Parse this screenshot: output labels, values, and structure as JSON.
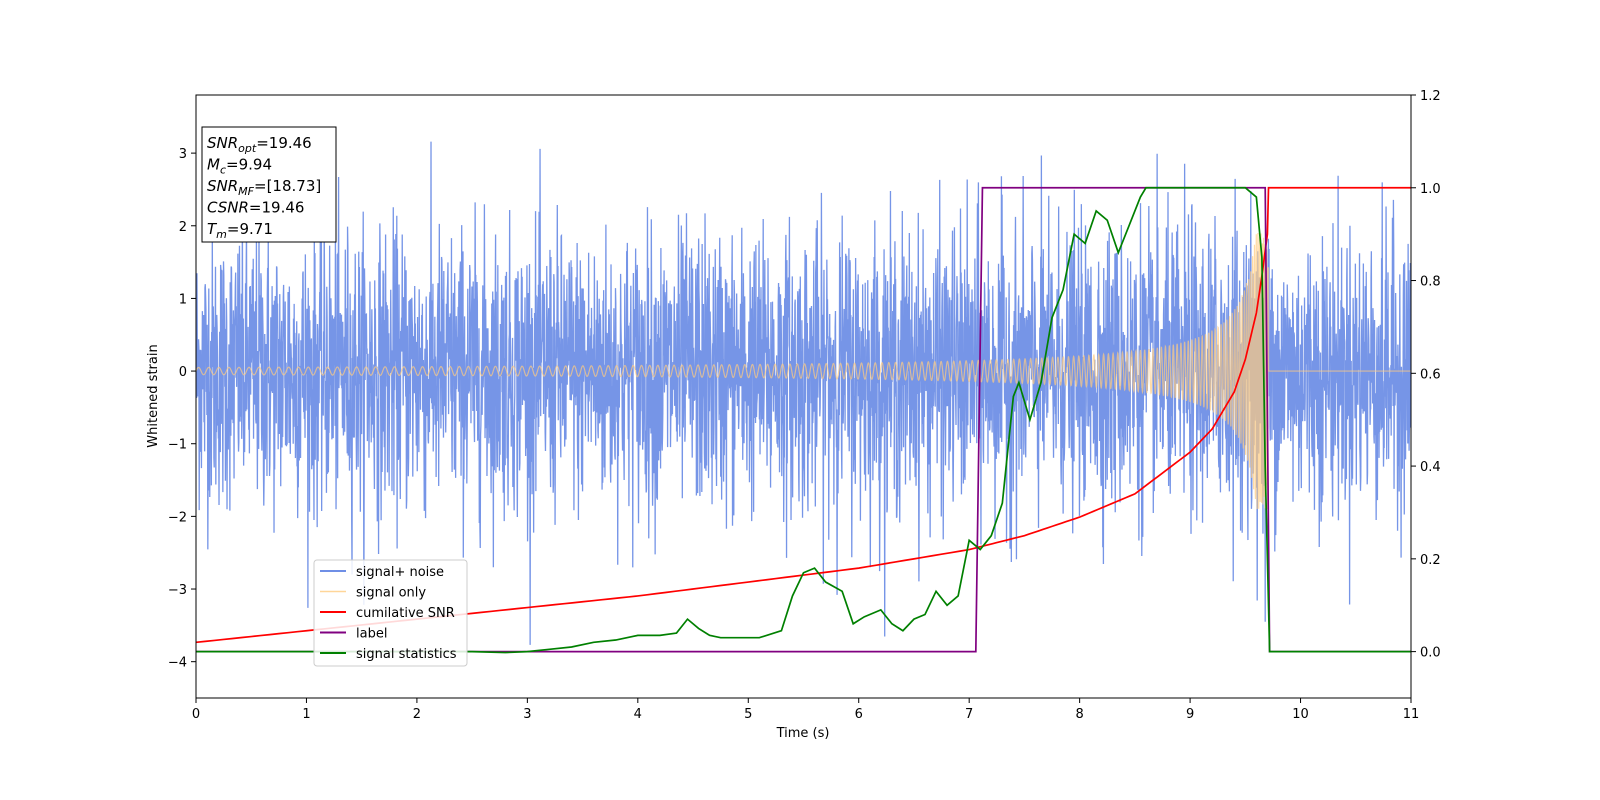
{
  "chart_data": {
    "type": "line",
    "xlabel": "Time (s)",
    "ylabel_left": "Whitened strain",
    "ylabel_right": "",
    "xlim": [
      0,
      11
    ],
    "ylim_left": [
      -4.5,
      3.8
    ],
    "ylim_right": [
      -0.1,
      1.2
    ],
    "x_ticks": [
      0,
      1,
      2,
      3,
      4,
      5,
      6,
      7,
      8,
      9,
      10,
      11
    ],
    "y_ticks_left": [
      -4,
      -3,
      -2,
      -1,
      0,
      1,
      2,
      3
    ],
    "y_ticks_right": [
      0.0,
      0.2,
      0.4,
      0.6,
      0.8,
      1.0,
      1.2
    ],
    "grid": false,
    "legend_position": "lower-left",
    "annotation_box": {
      "position": "upper-left",
      "lines": [
        {
          "base": "SNR",
          "sub": "opt",
          "rest": "=19.46"
        },
        {
          "base": "M",
          "sub": "c",
          "rest": "=9.94"
        },
        {
          "base": "SNR",
          "sub": "MF",
          "rest": "=[18.73]"
        },
        {
          "base": "CSNR",
          "sub": "",
          "rest": "=19.46"
        },
        {
          "base": "T",
          "sub": "m",
          "rest": "=9.71"
        }
      ]
    },
    "series": [
      {
        "name": "signal+ noise",
        "axis": "left",
        "color": "#6f8fe6",
        "description_values": "noise ~ N(0,1) plus chirp signal, peak |y|~3.4 near t=9.7"
      },
      {
        "name": "signal only",
        "axis": "left",
        "color": "#ffcc80",
        "chirp_amplitude_start": 0.05,
        "chirp_amplitude_peak": 1.9,
        "merger_time": 9.71
      },
      {
        "name": "cumilative SNR",
        "axis": "right",
        "color": "#ff0000",
        "x": [
          0,
          1,
          2,
          3,
          4,
          5,
          6,
          7,
          7.5,
          8,
          8.5,
          9,
          9.2,
          9.4,
          9.5,
          9.6,
          9.65,
          9.7,
          9.71,
          11
        ],
        "y": [
          0.02,
          0.045,
          0.07,
          0.095,
          0.12,
          0.15,
          0.18,
          0.22,
          0.25,
          0.29,
          0.34,
          0.43,
          0.48,
          0.56,
          0.63,
          0.73,
          0.81,
          0.9,
          1.0,
          1.0
        ]
      },
      {
        "name": "label",
        "axis": "right",
        "color": "#800080",
        "x": [
          0,
          7.06,
          7.12,
          9.68,
          9.72,
          11
        ],
        "y": [
          0,
          0,
          1,
          1,
          0,
          0
        ]
      },
      {
        "name": "signal statistics",
        "axis": "right",
        "color": "#008000",
        "x": [
          0,
          1,
          2,
          2.5,
          2.8,
          3,
          3.2,
          3.4,
          3.6,
          3.8,
          4,
          4.2,
          4.35,
          4.45,
          4.55,
          4.65,
          4.75,
          4.9,
          5.1,
          5.3,
          5.4,
          5.5,
          5.6,
          5.7,
          5.85,
          5.95,
          6.05,
          6.2,
          6.3,
          6.4,
          6.5,
          6.6,
          6.7,
          6.8,
          6.9,
          7.0,
          7.1,
          7.2,
          7.3,
          7.4,
          7.45,
          7.55,
          7.65,
          7.75,
          7.85,
          7.95,
          8.05,
          8.15,
          8.25,
          8.35,
          8.45,
          8.55,
          8.6,
          8.7,
          9.0,
          9.3,
          9.5,
          9.6,
          9.65,
          9.68,
          9.72,
          10,
          11
        ],
        "y": [
          0,
          0,
          0.0,
          0.0,
          -0.002,
          0.0,
          0.005,
          0.01,
          0.02,
          0.025,
          0.035,
          0.035,
          0.04,
          0.07,
          0.05,
          0.035,
          0.03,
          0.03,
          0.03,
          0.045,
          0.12,
          0.17,
          0.18,
          0.15,
          0.13,
          0.06,
          0.075,
          0.09,
          0.06,
          0.045,
          0.07,
          0.08,
          0.13,
          0.1,
          0.12,
          0.24,
          0.22,
          0.25,
          0.32,
          0.55,
          0.58,
          0.5,
          0.58,
          0.72,
          0.78,
          0.9,
          0.88,
          0.95,
          0.93,
          0.86,
          0.92,
          0.98,
          1.0,
          1.0,
          1.0,
          1.0,
          1.0,
          0.98,
          0.85,
          0.4,
          0.0,
          0.0,
          0.0
        ]
      }
    ]
  }
}
